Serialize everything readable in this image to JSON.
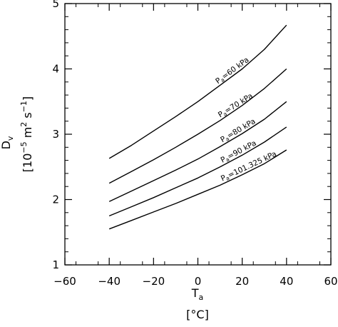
{
  "chart_data": {
    "type": "line",
    "xlabel": "T",
    "xlabel_sub": "a",
    "xunit": "[°C]",
    "ylabel": "D",
    "ylabel_sub": "v",
    "yunit": "[10",
    "yunit_exp1": "−5",
    "yunit_mid": " m",
    "yunit_exp2": "2",
    "yunit_mid2": " s",
    "yunit_exp3": "−1",
    "yunit_end": "]",
    "xlim": [
      -60,
      60
    ],
    "ylim": [
      1,
      5
    ],
    "xticks": [
      -60,
      -40,
      -20,
      0,
      20,
      40,
      60
    ],
    "xtick_labels": [
      "−60",
      "−40",
      "−20",
      "0",
      "20",
      "40",
      "60"
    ],
    "yticks": [
      1,
      2,
      3,
      4,
      5
    ],
    "ytick_labels": [
      "1",
      "2",
      "3",
      "4",
      "5"
    ],
    "x": [
      -40,
      -30,
      -20,
      -10,
      0,
      10,
      20,
      30,
      40
    ],
    "series": [
      {
        "label_main": "P",
        "label_sub": "a",
        "label_rest": "=60 kPa",
        "values": [
          2.63,
          2.83,
          3.05,
          3.27,
          3.5,
          3.75,
          4.0,
          4.3,
          4.67
        ],
        "label_x": 9
      },
      {
        "label_main": "P",
        "label_sub": "a",
        "label_rest": "=70 kPa",
        "values": [
          2.25,
          2.43,
          2.61,
          2.8,
          3.0,
          3.21,
          3.44,
          3.7,
          4.0
        ],
        "label_x": 10
      },
      {
        "label_main": "P",
        "label_sub": "a",
        "label_rest": "=80 kPa",
        "values": [
          1.97,
          2.13,
          2.29,
          2.45,
          2.62,
          2.81,
          3.01,
          3.23,
          3.5
        ],
        "label_x": 11
      },
      {
        "label_main": "P",
        "label_sub": "a",
        "label_rest": "=90 kPa",
        "values": [
          1.75,
          1.89,
          2.03,
          2.18,
          2.33,
          2.5,
          2.68,
          2.88,
          3.11
        ],
        "label_x": 11
      },
      {
        "label_main": "P",
        "label_sub": "a",
        "label_rest": "=101.325 kPa",
        "values": [
          1.55,
          1.68,
          1.81,
          1.94,
          2.08,
          2.22,
          2.38,
          2.55,
          2.76
        ],
        "label_x": 11
      }
    ],
    "grid": false,
    "legend": "none"
  }
}
